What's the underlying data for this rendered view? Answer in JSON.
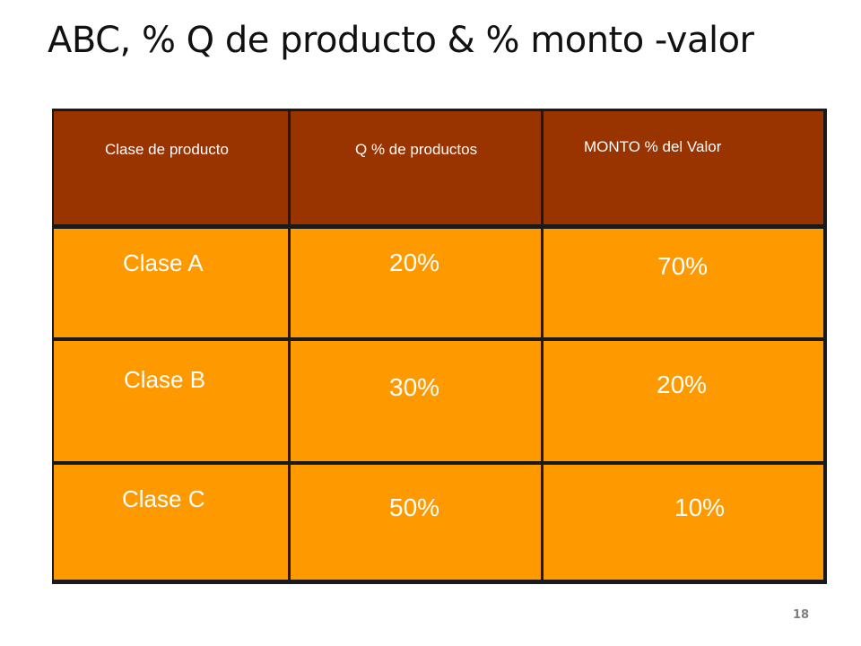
{
  "slide": {
    "title": "ABC, % Q de producto & % monto -valor",
    "page_number": "18"
  },
  "table": {
    "colors": {
      "header_bg": "#993300",
      "body_bg": "#ff9900",
      "border": "#1a1a1a",
      "text": "#ffffff"
    },
    "headers": [
      "Clase de producto",
      "Q % de productos",
      "MONTO % del Valor"
    ],
    "rows": [
      {
        "clase": "Clase A",
        "q_pct": "20%",
        "monto_pct": "70%"
      },
      {
        "clase": "Clase B",
        "q_pct": "30%",
        "monto_pct": "20%"
      },
      {
        "clase": "Clase C",
        "q_pct": "50%",
        "monto_pct": "10%"
      }
    ]
  }
}
